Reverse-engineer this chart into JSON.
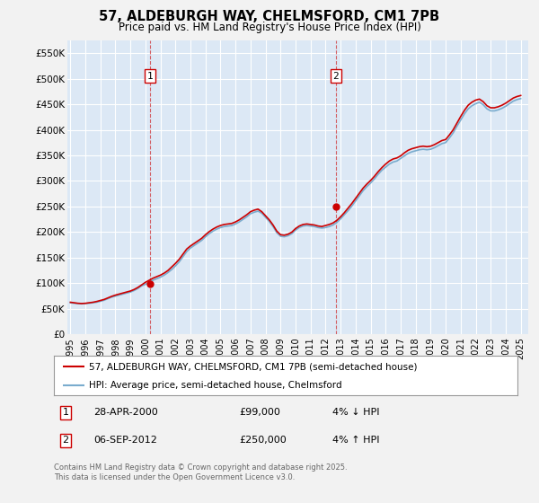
{
  "title": "57, ALDEBURGH WAY, CHELMSFORD, CM1 7PB",
  "subtitle": "Price paid vs. HM Land Registry's House Price Index (HPI)",
  "ylabel_ticks": [
    "£0",
    "£50K",
    "£100K",
    "£150K",
    "£200K",
    "£250K",
    "£300K",
    "£350K",
    "£400K",
    "£450K",
    "£500K",
    "£550K"
  ],
  "ytick_values": [
    0,
    50000,
    100000,
    150000,
    200000,
    250000,
    300000,
    350000,
    400000,
    450000,
    500000,
    550000
  ],
  "ylim": [
    0,
    575000
  ],
  "xlim_start": 1994.8,
  "xlim_end": 2025.5,
  "background_color": "#f2f2f2",
  "plot_bg_color": "#dce8f5",
  "legend_entries": [
    "57, ALDEBURGH WAY, CHELMSFORD, CM1 7PB (semi-detached house)",
    "HPI: Average price, semi-detached house, Chelmsford"
  ],
  "legend_colors": [
    "#cc0000",
    "#6699cc"
  ],
  "marker1_x": 2000.32,
  "marker1_y": 99000,
  "marker2_x": 2012.68,
  "marker2_y": 250000,
  "marker1_label": "1",
  "marker2_label": "2",
  "footer": "Contains HM Land Registry data © Crown copyright and database right 2025.\nThis data is licensed under the Open Government Licence v3.0.",
  "red_line_color": "#cc0000",
  "blue_line_color": "#7aacce",
  "hpi_data_x": [
    1995.0,
    1995.25,
    1995.5,
    1995.75,
    1996.0,
    1996.25,
    1996.5,
    1996.75,
    1997.0,
    1997.25,
    1997.5,
    1997.75,
    1998.0,
    1998.25,
    1998.5,
    1998.75,
    1999.0,
    1999.25,
    1999.5,
    1999.75,
    2000.0,
    2000.25,
    2000.5,
    2000.75,
    2001.0,
    2001.25,
    2001.5,
    2001.75,
    2002.0,
    2002.25,
    2002.5,
    2002.75,
    2003.0,
    2003.25,
    2003.5,
    2003.75,
    2004.0,
    2004.25,
    2004.5,
    2004.75,
    2005.0,
    2005.25,
    2005.5,
    2005.75,
    2006.0,
    2006.25,
    2006.5,
    2006.75,
    2007.0,
    2007.25,
    2007.5,
    2007.75,
    2008.0,
    2008.25,
    2008.5,
    2008.75,
    2009.0,
    2009.25,
    2009.5,
    2009.75,
    2010.0,
    2010.25,
    2010.5,
    2010.75,
    2011.0,
    2011.25,
    2011.5,
    2011.75,
    2012.0,
    2012.25,
    2012.5,
    2012.75,
    2013.0,
    2013.25,
    2013.5,
    2013.75,
    2014.0,
    2014.25,
    2014.5,
    2014.75,
    2015.0,
    2015.25,
    2015.5,
    2015.75,
    2016.0,
    2016.25,
    2016.5,
    2016.75,
    2017.0,
    2017.25,
    2017.5,
    2017.75,
    2018.0,
    2018.25,
    2018.5,
    2018.75,
    2019.0,
    2019.25,
    2019.5,
    2019.75,
    2020.0,
    2020.25,
    2020.5,
    2020.75,
    2021.0,
    2021.25,
    2021.5,
    2021.75,
    2022.0,
    2022.25,
    2022.5,
    2022.75,
    2023.0,
    2023.25,
    2023.5,
    2023.75,
    2024.0,
    2024.25,
    2024.5,
    2024.75,
    2025.0
  ],
  "hpi_data_y": [
    62000,
    61000,
    60500,
    60000,
    60500,
    61000,
    62000,
    63000,
    65000,
    67000,
    70000,
    73000,
    75000,
    77000,
    79000,
    81000,
    83000,
    86000,
    90000,
    95000,
    98000,
    102000,
    106000,
    109000,
    112000,
    116000,
    121000,
    127000,
    134000,
    142000,
    152000,
    162000,
    169000,
    174000,
    179000,
    184000,
    191000,
    197000,
    202000,
    206000,
    209000,
    211000,
    212000,
    213000,
    216000,
    220000,
    225000,
    230000,
    236000,
    239000,
    241000,
    237000,
    229000,
    221000,
    211000,
    199000,
    192000,
    191000,
    193000,
    197000,
    204000,
    209000,
    212000,
    213000,
    212000,
    211000,
    209000,
    208000,
    209000,
    211000,
    214000,
    219000,
    226000,
    234000,
    242000,
    251000,
    261000,
    271000,
    281000,
    289000,
    296000,
    304000,
    313000,
    321000,
    327000,
    333000,
    337000,
    339000,
    344000,
    349000,
    354000,
    357000,
    359000,
    361000,
    362000,
    361000,
    362000,
    365000,
    369000,
    373000,
    375000,
    384000,
    394000,
    407000,
    419000,
    431000,
    441000,
    447000,
    451000,
    454000,
    449000,
    441000,
    437000,
    437000,
    439000,
    442000,
    446000,
    451000,
    456000,
    459000,
    461000
  ],
  "red_data_y": [
    63000,
    62000,
    61000,
    60500,
    61000,
    62000,
    63000,
    64500,
    66500,
    68500,
    71500,
    74500,
    77000,
    79000,
    81000,
    83000,
    85000,
    88000,
    92000,
    97000,
    102000,
    106000,
    110000,
    113000,
    116000,
    120000,
    125000,
    132000,
    139000,
    147000,
    157000,
    167000,
    173000,
    178000,
    183000,
    188000,
    195000,
    201000,
    206000,
    210000,
    213000,
    215000,
    216000,
    217000,
    220000,
    224000,
    229000,
    234000,
    240000,
    243000,
    245000,
    240000,
    232000,
    224000,
    214000,
    202000,
    195000,
    194000,
    196000,
    200000,
    207000,
    212000,
    215000,
    216000,
    215000,
    214000,
    212000,
    211000,
    213000,
    215000,
    218000,
    223000,
    230000,
    238000,
    247000,
    256000,
    266000,
    276000,
    286000,
    294000,
    301000,
    309000,
    318000,
    326000,
    333000,
    339000,
    343000,
    345000,
    349000,
    355000,
    360000,
    363000,
    365000,
    367000,
    368000,
    367000,
    368000,
    371000,
    375000,
    379000,
    381000,
    390000,
    400000,
    413000,
    426000,
    438000,
    448000,
    454000,
    458000,
    460000,
    455000,
    447000,
    443000,
    443000,
    445000,
    448000,
    452000,
    457000,
    462000,
    465000,
    467000
  ]
}
